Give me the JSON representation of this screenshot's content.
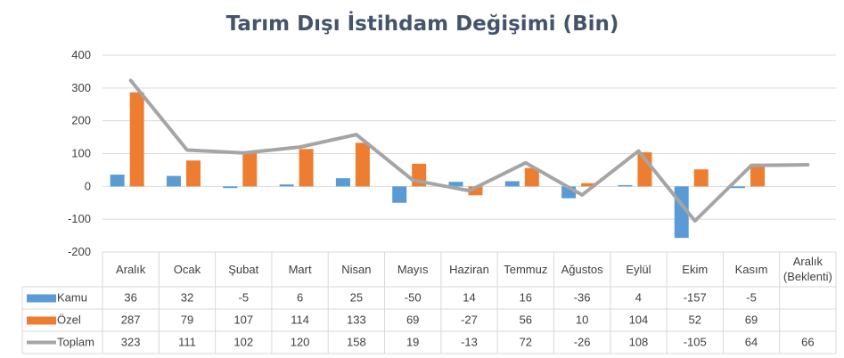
{
  "chart_data": {
    "type": "bar",
    "title": "Tarım Dışı İstihdam Değişimi (Bin)",
    "categories": [
      "Aralık",
      "Ocak",
      "Şubat",
      "Mart",
      "Nisan",
      "Mayıs",
      "Haziran",
      "Temmuz",
      "Ağustos",
      "Eylül",
      "Ekim",
      "Kasım",
      "Aralık (Beklenti)"
    ],
    "ylim": [
      -200,
      400
    ],
    "yticks": [
      400,
      300,
      200,
      100,
      0,
      -100,
      -200
    ],
    "grid": true,
    "legend": "table-left",
    "series": [
      {
        "name": "Kamu",
        "type": "bar",
        "color": "#5b9bd5",
        "values": [
          36,
          32,
          -5,
          6,
          25,
          -50,
          14,
          16,
          -36,
          4,
          -157,
          -5,
          null
        ]
      },
      {
        "name": "Özel",
        "type": "bar",
        "color": "#ed7d31",
        "values": [
          287,
          79,
          107,
          114,
          133,
          69,
          -27,
          56,
          10,
          104,
          52,
          69,
          null
        ]
      },
      {
        "name": "Toplam",
        "type": "line",
        "color": "#a5a5a5",
        "values": [
          323,
          111,
          102,
          120,
          158,
          19,
          -13,
          72,
          -26,
          108,
          -105,
          64,
          66
        ]
      }
    ]
  }
}
